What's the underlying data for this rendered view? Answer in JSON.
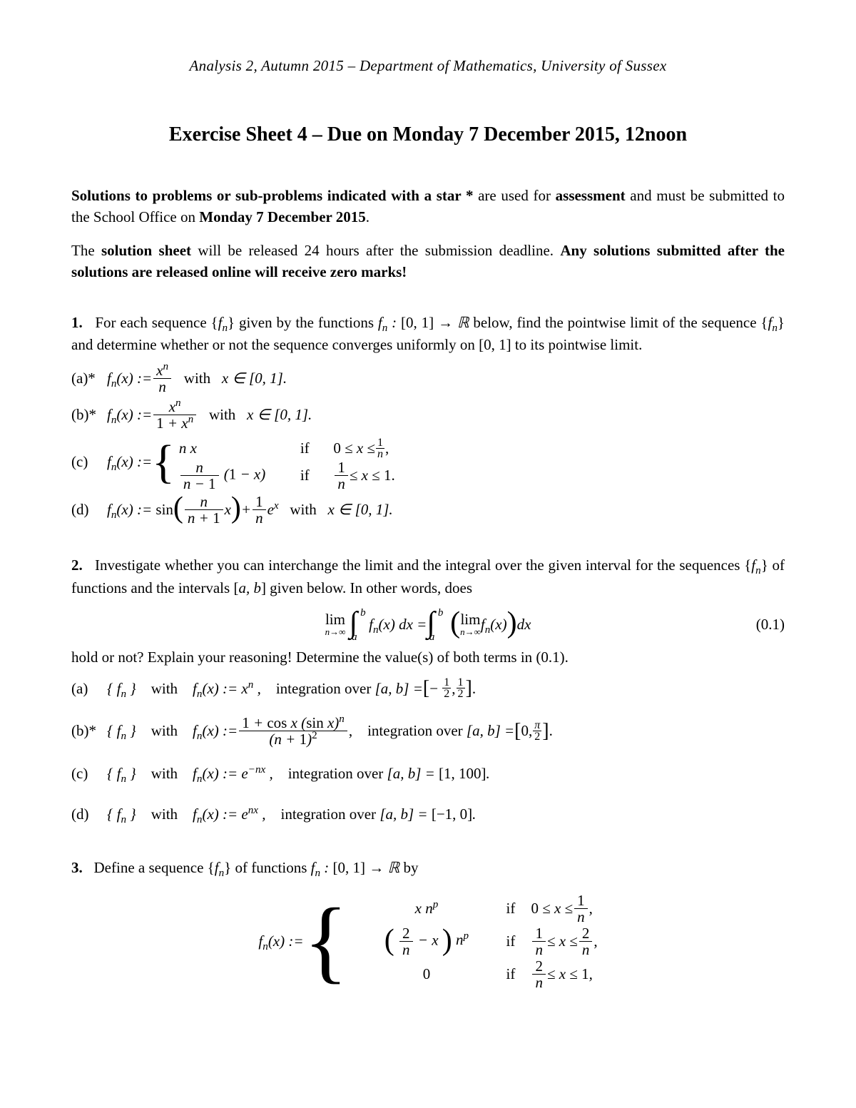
{
  "header": "Analysis 2, Autumn 2015 – Department of Mathematics, University of Sussex",
  "title": "Exercise Sheet 4 – Due on Monday 7 December 2015, 12noon",
  "intro1_a": "Solutions to problems or sub-problems indicated with a star *",
  "intro1_b": " are used for ",
  "intro1_c": "assessment",
  "intro1_d": " and must be submitted to the School Office on ",
  "intro1_e": "Monday 7 December 2015",
  "intro1_f": ".",
  "intro2_a": "The ",
  "intro2_b": "solution sheet",
  "intro2_c": " will be released 24 hours after the submission deadline. ",
  "intro2_d": "Any solutions submitted after the solutions are released online will receive zero marks!",
  "p1": {
    "num": "1.",
    "text_a": "For each sequence {",
    "fn": "f",
    "text_b": "} given by the functions ",
    "text_c": " below, find the pointwise limit of the sequence {",
    "text_d": "} and determine whether or not the sequence converges uniformly on [0, 1] to its pointwise limit.",
    "a_lbl": "(a)*",
    "b_lbl": "(b)*",
    "c_lbl": "(c)",
    "d_lbl": "(d)",
    "with": "with",
    "xin": "x ∈ [0, 1].",
    "if": "if"
  },
  "p2": {
    "num": "2.",
    "text_a": "Investigate whether you can interchange the limit and the integral over the given interval for the sequences {",
    "text_b": "} of functions and the intervals [",
    "ab": "a, b",
    "text_c": "] given below. In other words, does",
    "eqnum": "(0.1)",
    "hold": "hold or not? Explain your reasoning! Determine the value(s) of both terms in (0.1).",
    "a_lbl": "(a)",
    "b_lbl": "(b)*",
    "c_lbl": "(c)",
    "d_lbl": "(d)",
    "with": "with",
    "intover": "integration over"
  },
  "p3": {
    "num": "3.",
    "text": "Define a sequence {",
    "text2": "} of functions ",
    "text3": " by",
    "if": "if"
  }
}
